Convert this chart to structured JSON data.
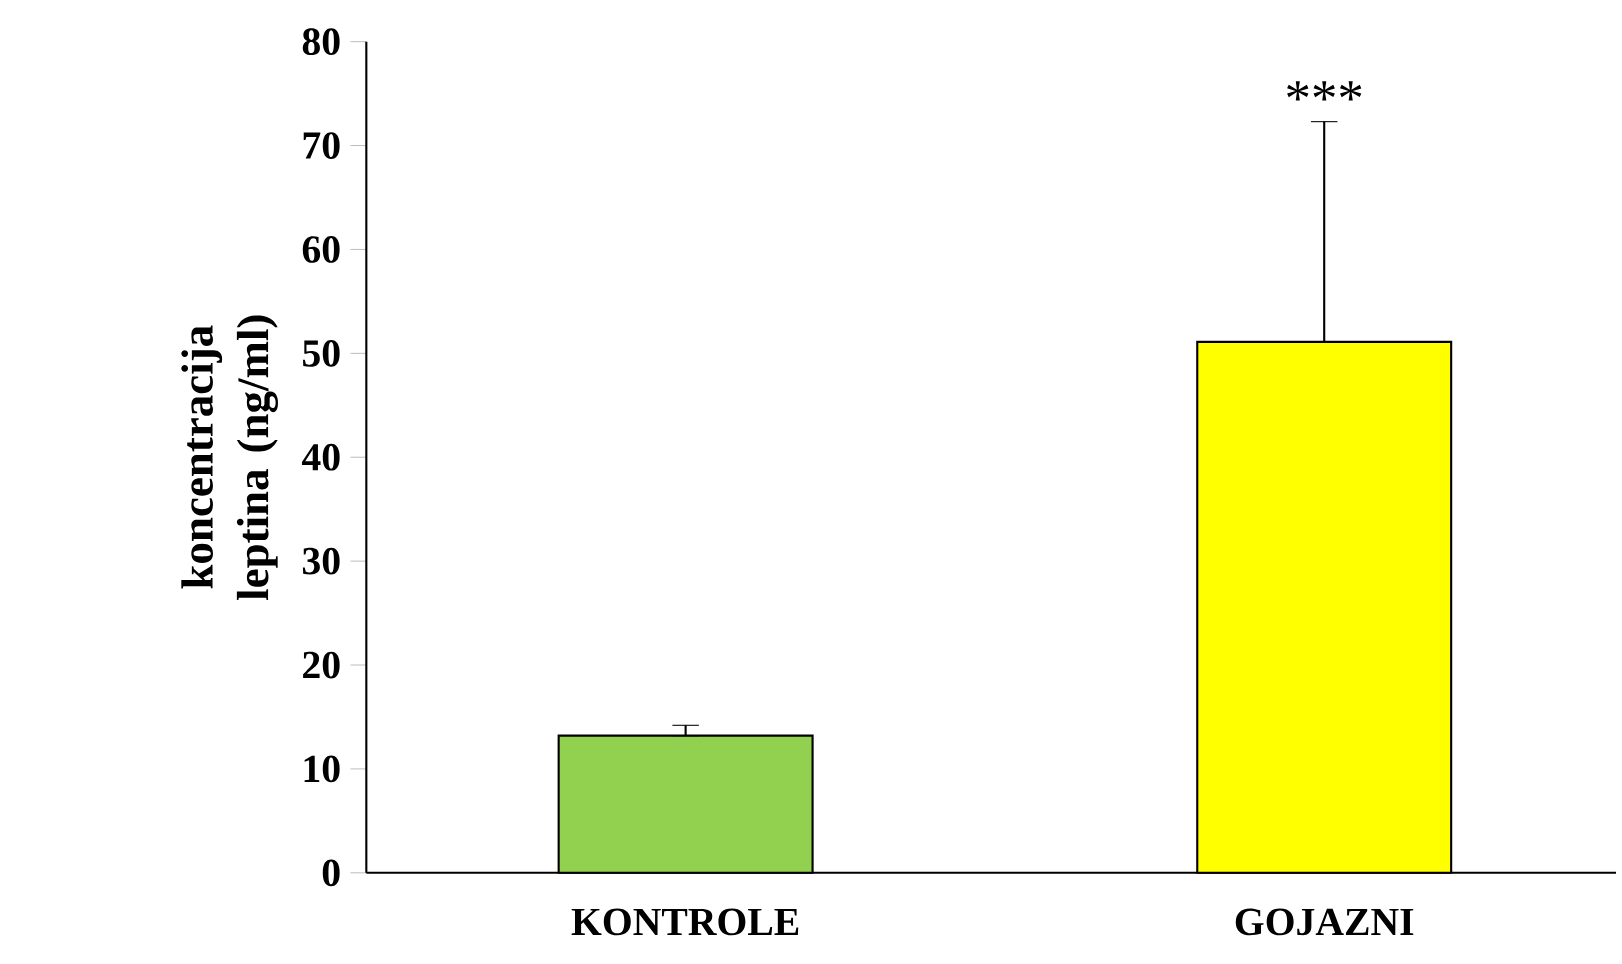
{
  "chart_data": {
    "type": "bar",
    "ylabel": "koncentracija leptina (ng/ml)",
    "categories": [
      "KONTROLE",
      "GOJAZNI"
    ],
    "values": [
      13.2,
      51.1
    ],
    "colors": [
      "#92d050",
      "#ffff00"
    ],
    "errors": [
      [
        13.2,
        14.2
      ],
      [
        51.1,
        72.3
      ]
    ],
    "ylim": [
      0,
      80
    ],
    "yticks": [
      0,
      10,
      20,
      30,
      40,
      50,
      60,
      70,
      80
    ],
    "annotations": [
      {
        "text": "***",
        "x": "GOJAZNI",
        "y": 72.3
      }
    ]
  }
}
